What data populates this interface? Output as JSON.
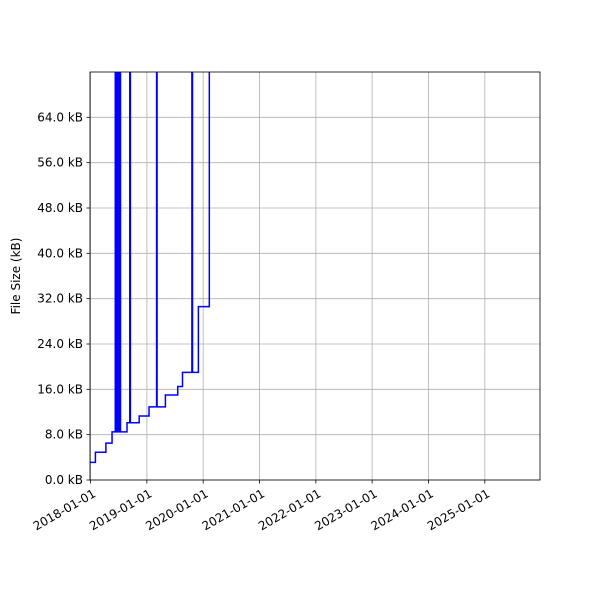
{
  "chart_data": {
    "type": "line",
    "title": "",
    "xlabel": "",
    "ylabel": "File Size (kB)",
    "x_ticks": [
      "2018-01-01",
      "2019-01-01",
      "2020-01-01",
      "2021-01-01",
      "2022-01-01",
      "2023-01-01",
      "2024-01-01",
      "2025-01-01"
    ],
    "y_ticks": [
      "0.0 kB",
      "8.0 kB",
      "16.0 kB",
      "24.0 kB",
      "32.0 kB",
      "40.0 kB",
      "48.0 kB",
      "56.0 kB",
      "64.0 kB"
    ],
    "xlim": [
      "2017-12-28",
      "2025-12-25"
    ],
    "ylim": [
      0,
      72
    ],
    "grid": true,
    "line_color": "#0000ff",
    "series": [
      {
        "step": "post",
        "points": [
          [
            "2017-12-28",
            3.1
          ],
          [
            "2018-01-15",
            3.1
          ],
          [
            "2018-02-01",
            4.9
          ],
          [
            "2018-03-20",
            4.9
          ],
          [
            "2018-04-10",
            6.5
          ],
          [
            "2018-05-20",
            8.5
          ],
          [
            "2018-06-01",
            8.5
          ],
          [
            "2018-06-10",
            72
          ],
          [
            "2018-06-18",
            8.5
          ],
          [
            "2018-06-24",
            72
          ],
          [
            "2018-07-02",
            8.5
          ],
          [
            "2018-07-08",
            72
          ],
          [
            "2018-07-14",
            8.5
          ],
          [
            "2018-08-25",
            10.1
          ],
          [
            "2018-09-12",
            72
          ],
          [
            "2018-09-16",
            10.1
          ],
          [
            "2018-11-12",
            11.3
          ],
          [
            "2019-01-15",
            12.9
          ],
          [
            "2019-03-05",
            72
          ],
          [
            "2019-03-08",
            12.9
          ],
          [
            "2019-05-01",
            15.0
          ],
          [
            "2019-07-20",
            16.5
          ],
          [
            "2019-08-20",
            19.0
          ],
          [
            "2019-10-20",
            72
          ],
          [
            "2019-10-24",
            19.0
          ],
          [
            "2019-12-01",
            30.6
          ],
          [
            "2020-02-10",
            72
          ]
        ]
      }
    ]
  }
}
